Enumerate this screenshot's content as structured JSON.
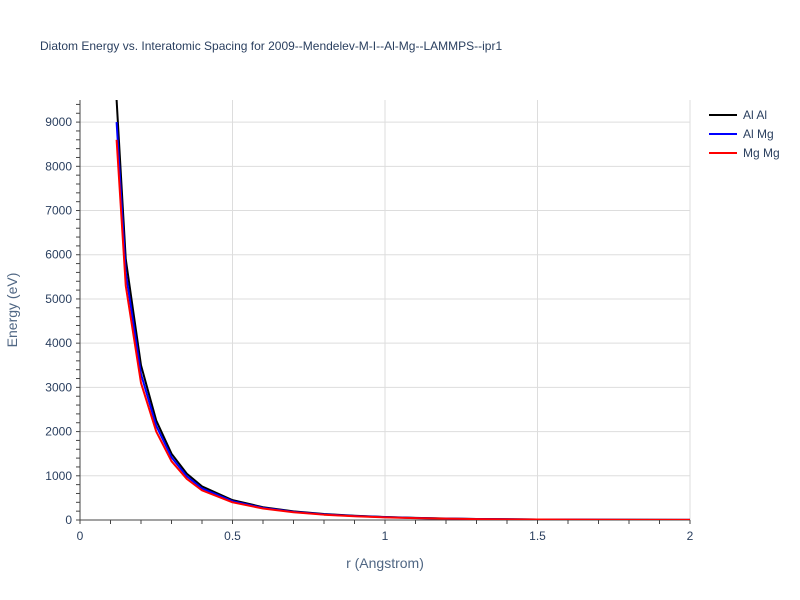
{
  "chart_data": {
    "type": "line",
    "title": "Diatom Energy vs. Interatomic Spacing for 2009--Mendelev-M-I--Al-Mg--LAMMPS--ipr1",
    "xlabel": "r (Angstrom)",
    "ylabel": "Energy (eV)",
    "xlim": [
      0,
      2
    ],
    "ylim": [
      0,
      9500
    ],
    "xticks": [
      0,
      0.5,
      1,
      1.5,
      2
    ],
    "xtick_labels": [
      "0",
      "0.5",
      "1",
      "1.5",
      "2"
    ],
    "yticks": [
      0,
      1000,
      2000,
      3000,
      4000,
      5000,
      6000,
      7000,
      8000,
      9000
    ],
    "ytick_labels": [
      "0",
      "1000",
      "2000",
      "3000",
      "4000",
      "5000",
      "6000",
      "7000",
      "8000",
      "9000"
    ],
    "grid": true,
    "legend_position": "top-right",
    "series": [
      {
        "name": "Al Al",
        "color": "#000000",
        "x": [
          0.12,
          0.15,
          0.2,
          0.25,
          0.3,
          0.35,
          0.4,
          0.5,
          0.6,
          0.7,
          0.8,
          0.9,
          1.0,
          1.1,
          1.2,
          1.3,
          1.5,
          1.7,
          2.0
        ],
        "y": [
          9500,
          5900,
          3500,
          2250,
          1500,
          1050,
          760,
          450,
          290,
          195,
          135,
          95,
          68,
          48,
          34,
          24,
          12,
          6,
          2
        ]
      },
      {
        "name": "Al Mg",
        "color": "#0000ff",
        "x": [
          0.12,
          0.15,
          0.2,
          0.25,
          0.3,
          0.35,
          0.4,
          0.5,
          0.6,
          0.7,
          0.8,
          0.9,
          1.0,
          1.1,
          1.2,
          1.3,
          1.5,
          1.7,
          2.0
        ],
        "y": [
          9000,
          5600,
          3300,
          2130,
          1420,
          990,
          715,
          425,
          275,
          185,
          128,
          90,
          64,
          45,
          32,
          22,
          11,
          5,
          2
        ]
      },
      {
        "name": "Mg Mg",
        "color": "#ff0000",
        "x": [
          0.12,
          0.15,
          0.2,
          0.25,
          0.3,
          0.35,
          0.4,
          0.5,
          0.6,
          0.7,
          0.8,
          0.9,
          1.0,
          1.1,
          1.2,
          1.3,
          1.5,
          1.7,
          2.0
        ],
        "y": [
          8600,
          5300,
          3100,
          2000,
          1330,
          930,
          670,
          400,
          260,
          175,
          120,
          85,
          60,
          42,
          30,
          21,
          10,
          5,
          2
        ]
      }
    ]
  }
}
